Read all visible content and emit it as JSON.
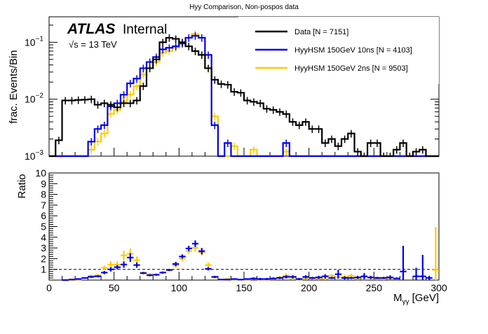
{
  "chart_data": [
    {
      "type": "line",
      "panel": "main",
      "title": "Hyy Comparison, Non-pospos data",
      "xlabel": "",
      "ylabel": "frac. Events/Bin",
      "yscale": "log",
      "xlim": [
        0,
        300
      ],
      "ylim": [
        0.001,
        0.28
      ],
      "ytick_labels": [
        "10^-3",
        "10^-2",
        "10^-1"
      ],
      "ytick_values": [
        0.001,
        0.01,
        0.1
      ],
      "bin_width": 5,
      "annotation": {
        "atlas": "ATLAS",
        "internal": "Internal",
        "energy": "√s = 13 TeV"
      },
      "legend_position": "top-right",
      "series": [
        {
          "name": "Data [N = 7151]",
          "color": "#000000",
          "x_start": [
            5,
            10,
            15,
            20,
            25,
            30,
            35,
            40,
            45,
            50,
            55,
            60,
            65,
            70,
            75,
            80,
            85,
            90,
            95,
            100,
            105,
            110,
            115,
            120,
            125,
            130,
            135,
            140,
            145,
            150,
            155,
            160,
            165,
            170,
            175,
            180,
            185,
            190,
            195,
            200,
            205,
            210,
            215,
            220,
            225,
            230,
            235,
            240,
            245,
            250,
            255,
            260,
            265,
            270,
            275,
            280,
            285
          ],
          "values": [
            0.0019,
            0.0095,
            0.0095,
            0.0097,
            0.0098,
            0.01,
            0.008,
            0.0085,
            0.008,
            0.0072,
            0.0085,
            0.0085,
            0.0095,
            0.017,
            0.035,
            0.05,
            0.1,
            0.12,
            0.115,
            0.1,
            0.085,
            0.07,
            0.06,
            0.035,
            0.022,
            0.0185,
            0.018,
            0.0135,
            0.013,
            0.0095,
            0.009,
            0.0085,
            0.0068,
            0.0065,
            0.006,
            0.0055,
            0.004,
            0.0035,
            0.004,
            0.003,
            0.003,
            0.0017,
            0.002,
            0.0015,
            0.002,
            0.0025,
            0.0012,
            0.001,
            0.0017,
            0.0017,
            0.001,
            0.001,
            0.0013,
            0.0017,
            0.001,
            0.0012,
            0.0013
          ]
        },
        {
          "name": "HyyHSM 150GeV 10ns [N = 4103]",
          "color": "#0000ee",
          "x_start": [
            30,
            35,
            40,
            45,
            50,
            55,
            60,
            65,
            70,
            75,
            80,
            85,
            90,
            95,
            100,
            105,
            110,
            115,
            120,
            125,
            130,
            135,
            140,
            145,
            150,
            155,
            160,
            180
          ],
          "values": [
            0.0018,
            0.003,
            0.0035,
            0.0075,
            0.0085,
            0.012,
            0.019,
            0.023,
            0.035,
            0.045,
            0.055,
            0.075,
            0.08,
            0.085,
            0.095,
            0.12,
            0.13,
            0.12,
            0.06,
            0.0035,
            0.0008,
            0.0017,
            0.0008,
            0.0006,
            0.0005,
            0.0006,
            0.0005,
            0.0017
          ]
        },
        {
          "name": "HyyHSM 150GeV 2ns [N = 9503]",
          "color": "#ffcc00",
          "x_start": [
            30,
            35,
            40,
            45,
            50,
            55,
            60,
            65,
            70,
            75,
            80,
            85,
            90,
            95,
            100,
            105,
            110,
            115,
            120,
            125,
            130,
            135,
            140,
            145,
            150,
            155,
            160,
            180
          ],
          "values": [
            0.0013,
            0.0018,
            0.0025,
            0.0055,
            0.0065,
            0.009,
            0.012,
            0.017,
            0.027,
            0.035,
            0.045,
            0.065,
            0.07,
            0.08,
            0.1,
            0.12,
            0.14,
            0.12,
            0.035,
            0.005,
            0.0009,
            0.0008,
            0.0015,
            0.0008,
            0.0009,
            0.0013,
            0.0008,
            0.0012
          ]
        }
      ]
    },
    {
      "type": "scatter",
      "panel": "ratio",
      "xlabel": "M_γγ [GeV]",
      "ylabel": "Ratio",
      "xlim": [
        0,
        300
      ],
      "ylim": [
        0,
        10
      ],
      "xtick_labels": [
        "0",
        "50",
        "100",
        "150",
        "200",
        "250",
        "300"
      ],
      "ytick_labels": [
        "1",
        "2",
        "3",
        "4",
        "5",
        "6",
        "7",
        "8",
        "9",
        "10"
      ],
      "reference_line": 1,
      "series": [
        {
          "name": "HyyHSM 150GeV 10ns / Data",
          "color": "#0000ee",
          "x": [
            12.5,
            17.5,
            22.5,
            27.5,
            32.5,
            37.5,
            42.5,
            47.5,
            52.5,
            57.5,
            62.5,
            67.5,
            72.5,
            77.5,
            82.5,
            87.5,
            92.5,
            97.5,
            102.5,
            107.5,
            112.5,
            117.5,
            122.5,
            127.5,
            132.5,
            137.5,
            142.5,
            147.5,
            152.5,
            157.5,
            162.5,
            167.5,
            172.5,
            177.5,
            182.5,
            187.5,
            192.5,
            197.5,
            202.5,
            207.5,
            212.5,
            217.5,
            222.5,
            227.5,
            232.5,
            237.5,
            242.5,
            247.5,
            252.5,
            257.5,
            262.5,
            267.5,
            272.5,
            282.5,
            287.5,
            292.5
          ],
          "y": [
            0.0,
            0.05,
            0.1,
            0.2,
            0.3,
            0.35,
            0.7,
            1.0,
            1.2,
            1.45,
            2.1,
            1.4,
            0.65,
            0.45,
            0.5,
            0.7,
            0.95,
            1.5,
            2.2,
            2.95,
            3.4,
            2.7,
            1.05,
            0.3,
            0.05,
            0.05,
            0.1,
            0.05,
            0.1,
            0.15,
            0.1,
            0.1,
            0.15,
            0.2,
            0.3,
            0.3,
            0.1,
            0.3,
            0.2,
            0.25,
            0.35,
            0.2,
            0.55,
            0.2,
            0.2,
            0.25,
            0.35,
            0.25,
            0.2,
            0.2,
            0.25,
            0.15,
            0.8,
            0.35,
            0.35,
            0.2
          ],
          "err": [
            0.05,
            0.05,
            0.05,
            0.05,
            0.1,
            0.1,
            0.15,
            0.2,
            0.2,
            0.3,
            0.4,
            0.25,
            0.1,
            0.1,
            0.1,
            0.1,
            0.1,
            0.2,
            0.2,
            0.25,
            0.3,
            0.3,
            0.15,
            0.1,
            0.05,
            0.05,
            0.05,
            0.05,
            0.05,
            0.1,
            0.1,
            0.1,
            0.1,
            0.1,
            0.15,
            0.15,
            0.1,
            0.15,
            0.1,
            0.15,
            0.2,
            0.1,
            0.4,
            0.15,
            0.1,
            0.15,
            0.3,
            0.15,
            0.1,
            0.1,
            0.2,
            0.1,
            2.4,
            0.8,
            2.0,
            0.2
          ]
        },
        {
          "name": "HyyHSM 150GeV 2ns / Data",
          "color": "#ffcc00",
          "x": [
            12.5,
            17.5,
            22.5,
            27.5,
            32.5,
            37.5,
            42.5,
            47.5,
            52.5,
            57.5,
            62.5,
            67.5,
            72.5,
            77.5,
            82.5,
            87.5,
            92.5,
            97.5,
            102.5,
            107.5,
            112.5,
            117.5,
            122.5,
            127.5,
            132.5,
            137.5,
            142.5,
            147.5,
            152.5,
            157.5,
            162.5,
            167.5,
            172.5,
            177.5,
            182.5,
            187.5,
            192.5,
            197.5,
            202.5,
            207.5,
            212.5,
            217.5,
            222.5,
            227.5,
            232.5,
            237.5,
            242.5,
            247.5,
            252.5,
            257.5,
            262.5,
            267.5,
            297.5
          ],
          "y": [
            0.0,
            0.0,
            0.05,
            0.2,
            0.4,
            0.45,
            1.15,
            1.45,
            1.45,
            2.3,
            2.45,
            1.85,
            0.7,
            0.55,
            0.5,
            0.7,
            0.9,
            1.35,
            2.0,
            2.7,
            3.0,
            2.6,
            1.4,
            0.25,
            0.05,
            0.1,
            0.05,
            0.05,
            0.05,
            0.1,
            0.05,
            0.05,
            0.1,
            0.25,
            0.4,
            0.1,
            0.05,
            0.15,
            0.15,
            0.1,
            0.1,
            0.4,
            0.25,
            0.3,
            0.4,
            0.1,
            0.3,
            0.2,
            0.1,
            0.15,
            0.1,
            0.1,
            0.95
          ],
          "err": [
            0.05,
            0.05,
            0.05,
            0.05,
            0.1,
            0.1,
            0.2,
            0.3,
            0.3,
            0.45,
            0.5,
            0.35,
            0.1,
            0.1,
            0.1,
            0.1,
            0.1,
            0.2,
            0.25,
            0.25,
            0.35,
            0.3,
            0.25,
            0.1,
            0.05,
            0.05,
            0.05,
            0.05,
            0.05,
            0.05,
            0.05,
            0.05,
            0.1,
            0.15,
            0.2,
            0.1,
            0.05,
            0.1,
            0.1,
            0.1,
            0.1,
            0.2,
            0.15,
            0.2,
            0.2,
            0.1,
            0.3,
            0.15,
            0.1,
            0.15,
            0.1,
            0.1,
            4.0
          ]
        }
      ]
    }
  ]
}
